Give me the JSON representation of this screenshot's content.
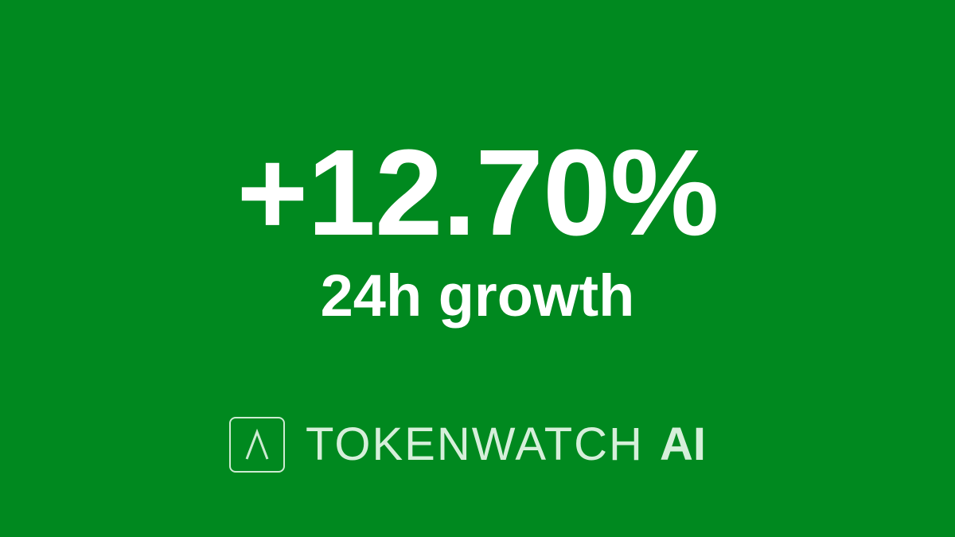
{
  "metric": {
    "value": "+12.70%",
    "label": "24h growth"
  },
  "brand": {
    "icon": "triangle-a-logo-icon",
    "name": "TOKENWATCH",
    "suffix": "AI"
  },
  "colors": {
    "background": "#00891f",
    "text": "#ffffff",
    "brand": "#d6efda"
  }
}
